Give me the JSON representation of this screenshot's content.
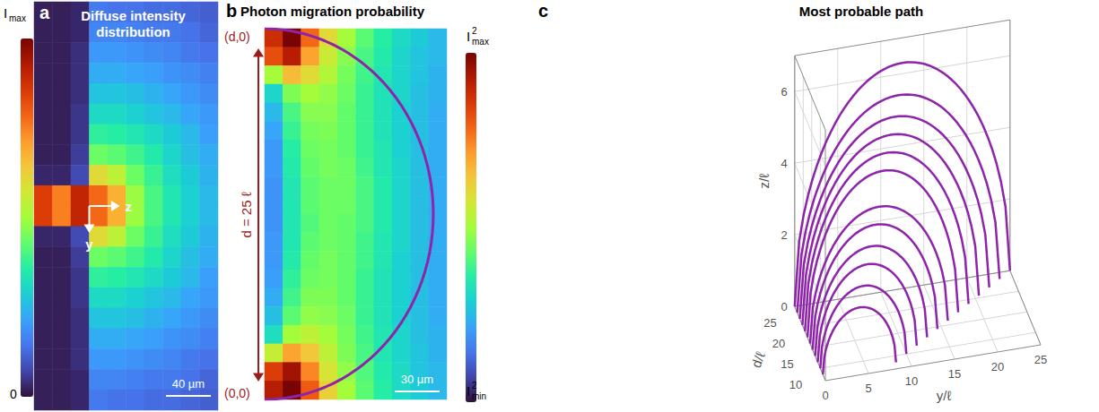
{
  "chart_data": [
    {
      "type": "image",
      "letter": "a",
      "title": "Diffuse intensity distribution",
      "tick_labels": false,
      "color_range": [
        0,
        1
      ],
      "colorbar_max": {
        "text": "I",
        "sub": "max"
      },
      "colorbar_min": "0",
      "axis_arrows": [
        "z",
        "y"
      ],
      "scale_bar": "40 µm",
      "cells": [
        [
          0.02,
          0.02,
          0.03,
          0.15,
          0.14,
          0.14,
          0.13,
          0.13,
          0.12,
          0.11
        ],
        [
          0.02,
          0.02,
          0.03,
          0.17,
          0.17,
          0.16,
          0.15,
          0.15,
          0.14,
          0.12
        ],
        [
          0.02,
          0.02,
          0.04,
          0.2,
          0.2,
          0.19,
          0.18,
          0.17,
          0.15,
          0.14
        ],
        [
          0.02,
          0.02,
          0.04,
          0.23,
          0.23,
          0.22,
          0.21,
          0.19,
          0.18,
          0.16
        ],
        [
          0.02,
          0.02,
          0.04,
          0.27,
          0.27,
          0.26,
          0.24,
          0.22,
          0.2,
          0.18
        ],
        [
          0.02,
          0.02,
          0.05,
          0.31,
          0.31,
          0.29,
          0.27,
          0.25,
          0.22,
          0.2
        ],
        [
          0.02,
          0.02,
          0.05,
          0.37,
          0.36,
          0.34,
          0.31,
          0.28,
          0.25,
          0.21
        ],
        [
          0.02,
          0.02,
          0.06,
          0.44,
          0.42,
          0.39,
          0.35,
          0.3,
          0.26,
          0.23
        ],
        [
          0.03,
          0.03,
          0.08,
          0.6,
          0.54,
          0.44,
          0.38,
          0.32,
          0.28,
          0.24
        ],
        [
          0.85,
          0.75,
          0.9,
          0.78,
          0.68,
          0.49,
          0.4,
          0.34,
          0.29,
          0.25
        ],
        [
          0.85,
          0.75,
          0.9,
          0.78,
          0.68,
          0.49,
          0.4,
          0.34,
          0.29,
          0.25
        ],
        [
          0.03,
          0.03,
          0.08,
          0.6,
          0.54,
          0.44,
          0.38,
          0.32,
          0.28,
          0.24
        ],
        [
          0.02,
          0.02,
          0.06,
          0.44,
          0.42,
          0.39,
          0.35,
          0.3,
          0.26,
          0.23
        ],
        [
          0.02,
          0.02,
          0.05,
          0.37,
          0.36,
          0.34,
          0.31,
          0.28,
          0.25,
          0.21
        ],
        [
          0.02,
          0.02,
          0.05,
          0.31,
          0.31,
          0.29,
          0.27,
          0.25,
          0.22,
          0.2
        ],
        [
          0.02,
          0.02,
          0.04,
          0.27,
          0.27,
          0.26,
          0.24,
          0.22,
          0.2,
          0.18
        ],
        [
          0.02,
          0.02,
          0.04,
          0.23,
          0.23,
          0.22,
          0.21,
          0.19,
          0.18,
          0.16
        ],
        [
          0.02,
          0.02,
          0.04,
          0.2,
          0.2,
          0.19,
          0.18,
          0.17,
          0.15,
          0.14
        ],
        [
          0.02,
          0.02,
          0.03,
          0.17,
          0.17,
          0.16,
          0.15,
          0.15,
          0.14,
          0.12
        ],
        [
          0.02,
          0.02,
          0.03,
          0.15,
          0.14,
          0.14,
          0.13,
          0.13,
          0.12,
          0.11
        ]
      ]
    },
    {
      "type": "heatmap",
      "letter": "b",
      "title": "Photon migration probability",
      "xlim": [
        0,
        13.5
      ],
      "ylim": [
        0,
        25
      ],
      "tick_labels": false,
      "color": "#8e24aa",
      "color_range": [
        0,
        1
      ],
      "colorbar_max": {
        "text": "I",
        "sup": "2",
        "sub": "max"
      },
      "colorbar_min": {
        "text": "I",
        "sup": "2",
        "sub": "min"
      },
      "span_label": "d = 25 ℓ",
      "end_top": "(d,0)",
      "end_bottom": "(0,0)",
      "scale_bar": "30 µm",
      "cells": [
        [
          0.88,
          1.0,
          0.78,
          0.6,
          0.5,
          0.42,
          0.36,
          0.31,
          0.28,
          0.25
        ],
        [
          0.82,
          0.92,
          0.7,
          0.56,
          0.47,
          0.4,
          0.35,
          0.3,
          0.27,
          0.25
        ],
        [
          0.5,
          0.66,
          0.6,
          0.52,
          0.45,
          0.39,
          0.34,
          0.3,
          0.27,
          0.24
        ],
        [
          0.3,
          0.46,
          0.5,
          0.48,
          0.44,
          0.38,
          0.33,
          0.3,
          0.26,
          0.24
        ],
        [
          0.25,
          0.4,
          0.47,
          0.47,
          0.43,
          0.38,
          0.33,
          0.29,
          0.26,
          0.23
        ],
        [
          0.22,
          0.38,
          0.45,
          0.46,
          0.43,
          0.38,
          0.33,
          0.29,
          0.26,
          0.23
        ],
        [
          0.2,
          0.36,
          0.44,
          0.45,
          0.43,
          0.38,
          0.34,
          0.29,
          0.26,
          0.23
        ],
        [
          0.2,
          0.35,
          0.43,
          0.45,
          0.44,
          0.39,
          0.34,
          0.3,
          0.26,
          0.23
        ],
        [
          0.19,
          0.34,
          0.42,
          0.44,
          0.44,
          0.4,
          0.35,
          0.3,
          0.26,
          0.23
        ],
        [
          0.19,
          0.34,
          0.42,
          0.44,
          0.44,
          0.4,
          0.35,
          0.3,
          0.26,
          0.23
        ],
        [
          0.19,
          0.34,
          0.41,
          0.44,
          0.43,
          0.4,
          0.35,
          0.3,
          0.26,
          0.23
        ],
        [
          0.2,
          0.34,
          0.42,
          0.44,
          0.43,
          0.39,
          0.34,
          0.3,
          0.26,
          0.23
        ],
        [
          0.2,
          0.35,
          0.43,
          0.45,
          0.43,
          0.39,
          0.34,
          0.29,
          0.26,
          0.23
        ],
        [
          0.21,
          0.37,
          0.44,
          0.45,
          0.43,
          0.38,
          0.33,
          0.29,
          0.26,
          0.23
        ],
        [
          0.23,
          0.39,
          0.46,
          0.46,
          0.43,
          0.38,
          0.33,
          0.29,
          0.26,
          0.23
        ],
        [
          0.26,
          0.42,
          0.48,
          0.47,
          0.44,
          0.38,
          0.33,
          0.29,
          0.26,
          0.23
        ],
        [
          0.32,
          0.5,
          0.54,
          0.5,
          0.45,
          0.39,
          0.34,
          0.3,
          0.26,
          0.24
        ],
        [
          0.55,
          0.7,
          0.64,
          0.54,
          0.46,
          0.4,
          0.34,
          0.3,
          0.27,
          0.24
        ],
        [
          0.85,
          0.95,
          0.74,
          0.58,
          0.48,
          0.41,
          0.35,
          0.31,
          0.27,
          0.25
        ],
        [
          0.92,
          1.0,
          0.8,
          0.62,
          0.5,
          0.42,
          0.36,
          0.31,
          0.28,
          0.25
        ]
      ]
    },
    {
      "type": "line3d",
      "letter": "c",
      "title": "Most probable path",
      "xlabel": "y/ℓ",
      "ylabel": "d/ℓ",
      "zlabel": "z/ℓ",
      "xlim": [
        0,
        25
      ],
      "xticks": [
        0,
        5,
        10,
        15,
        20,
        25
      ],
      "ylim": [
        7,
        25
      ],
      "yticks": [
        10,
        15,
        20,
        25
      ],
      "zlim": [
        0,
        7
      ],
      "zticks": [
        0,
        2,
        4,
        6
      ],
      "grid": true,
      "color": "#8e24aa",
      "d": [
        8.5,
        10,
        11.5,
        13,
        14.5,
        16,
        17.5,
        19,
        20.5,
        22,
        23.5,
        25
      ],
      "z_peak": [
        1.7,
        2.1,
        2.5,
        2.8,
        3.2,
        3.5,
        4.3,
        4.6,
        4.9,
        5.2,
        5.6,
        6.3
      ]
    }
  ]
}
